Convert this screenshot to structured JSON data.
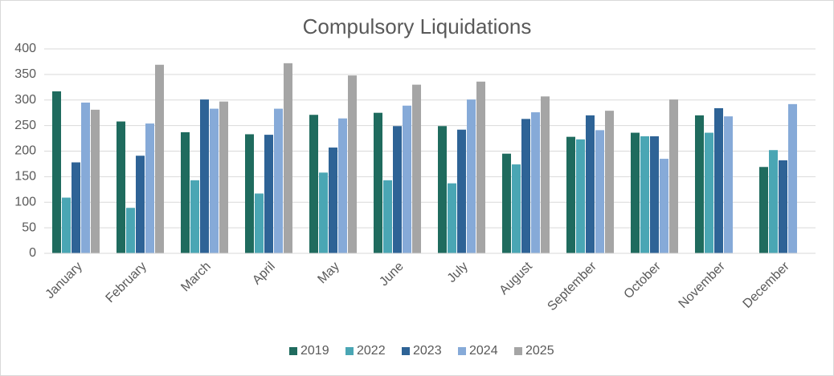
{
  "chart_data": {
    "type": "bar",
    "title": "Compulsory Liquidations",
    "categories": [
      "January",
      "February",
      "March",
      "April",
      "May",
      "June",
      "July",
      "August",
      "September",
      "October",
      "November",
      "December"
    ],
    "series": [
      {
        "name": "2019",
        "color": "#1f6b5e",
        "values": [
          317,
          258,
          237,
          233,
          271,
          275,
          249,
          195,
          228,
          236,
          270,
          169
        ]
      },
      {
        "name": "2022",
        "color": "#4aa6b4",
        "values": [
          109,
          89,
          143,
          117,
          158,
          143,
          137,
          174,
          223,
          229,
          236,
          202
        ]
      },
      {
        "name": "2023",
        "color": "#2e6396",
        "values": [
          178,
          191,
          301,
          232,
          207,
          249,
          242,
          263,
          270,
          229,
          284,
          182
        ]
      },
      {
        "name": "2024",
        "color": "#86aad8",
        "values": [
          295,
          254,
          283,
          283,
          264,
          289,
          301,
          276,
          241,
          185,
          268,
          292
        ]
      },
      {
        "name": "2025",
        "color": "#a5a5a5",
        "values": [
          281,
          369,
          297,
          372,
          348,
          330,
          336,
          307,
          279,
          301,
          null,
          null
        ]
      }
    ],
    "ylim": [
      0,
      400
    ],
    "yticks": [
      0,
      50,
      100,
      150,
      200,
      250,
      300,
      350,
      400
    ],
    "grid": true,
    "legend": "bottom"
  }
}
